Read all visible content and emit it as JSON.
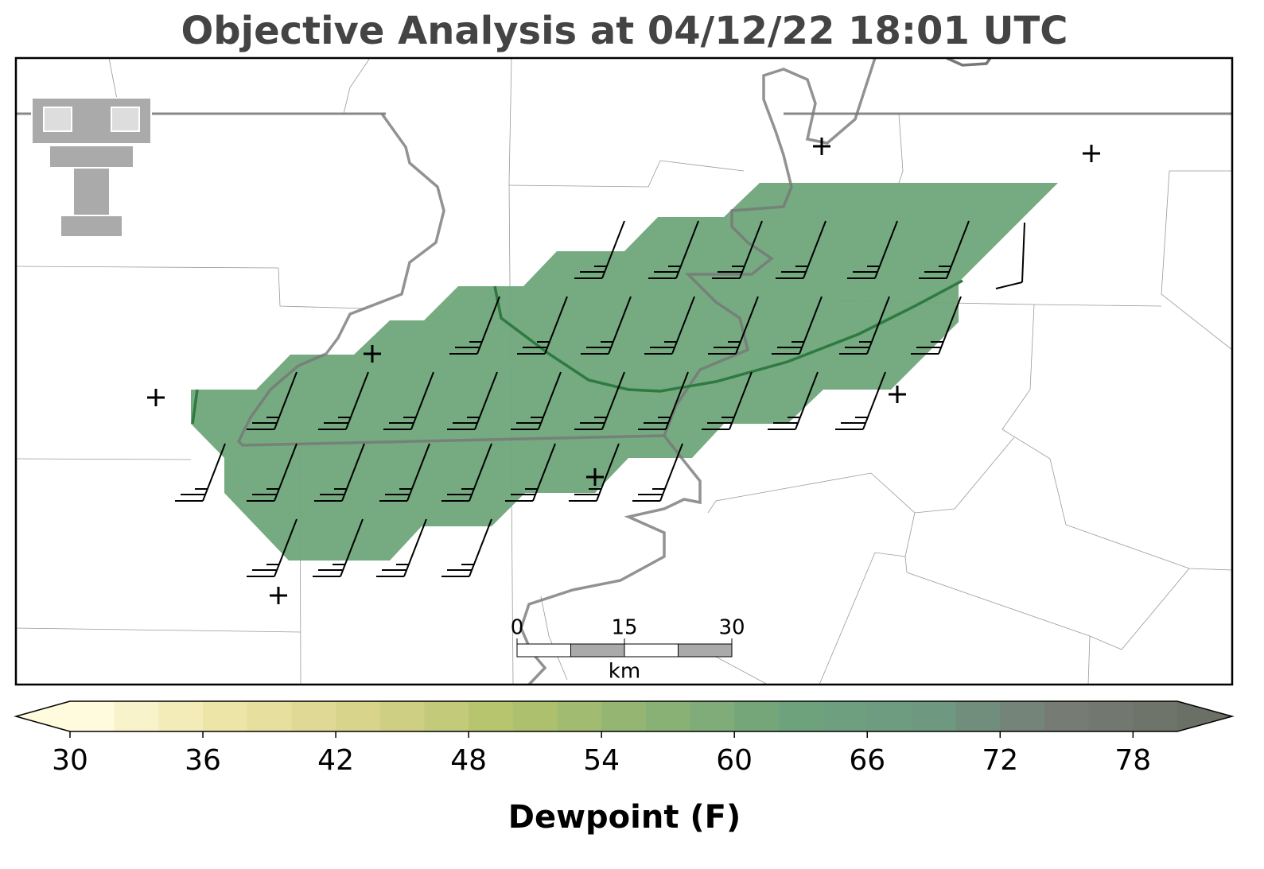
{
  "title": "Objective Analysis at 04/12/22 18:01 UTC",
  "colorbar": {
    "label": "Dewpoint (F)",
    "lim": [
      30,
      80
    ],
    "step": 2,
    "ticks": [
      30,
      36,
      42,
      48,
      54,
      60,
      66,
      72,
      78
    ],
    "colors": [
      "#fffbdc",
      "#ece3a6",
      "#d6d389",
      "#b4c36c",
      "#8fb474",
      "#6ea37c",
      "#6e9a82",
      "#767c74",
      "#6a7066"
    ]
  },
  "scale_bar": {
    "unit": "km",
    "ticks": [
      0,
      15,
      30
    ]
  }
}
